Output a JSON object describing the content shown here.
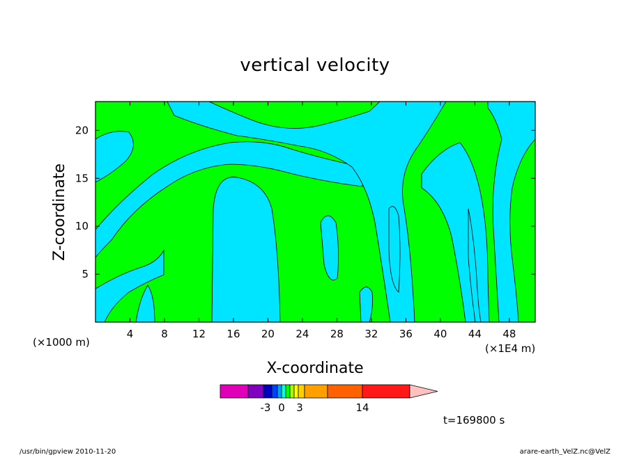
{
  "chart_data": {
    "type": "heatmap",
    "title": "vertical velocity",
    "xlabel": "X-coordinate",
    "ylabel": "Z-coordinate",
    "x_unit_left": "(×1000 m)",
    "x_unit_right": "(×1E4 m)",
    "xlim": [
      0,
      51
    ],
    "ylim": [
      0,
      23
    ],
    "x_ticks": [
      "4",
      "8",
      "12",
      "16",
      "20",
      "24",
      "28",
      "32",
      "36",
      "40",
      "44",
      "48"
    ],
    "y_ticks": [
      "5",
      "10",
      "15",
      "20"
    ],
    "fill_colors": {
      "positive": "#00ff00",
      "negative": "#00e5ff"
    },
    "colorbar": {
      "colors": [
        "#e000b8",
        "#8000c0",
        "#0000c0",
        "#0040ff",
        "#00a0ff",
        "#00ffe0",
        "#00ff00",
        "#a0ff00",
        "#ffff00",
        "#ffd000",
        "#ffa000",
        "#ff6000",
        "#ff1818",
        "#ff8080",
        "#ffc0c0"
      ],
      "labels": [
        "-3",
        "0",
        "3",
        "14"
      ]
    },
    "time_label": "t=169800 s"
  },
  "footer": {
    "left": "/usr/bin/gpview   2010-11-20",
    "right": "arare-earth_VelZ.nc@VelZ"
  }
}
